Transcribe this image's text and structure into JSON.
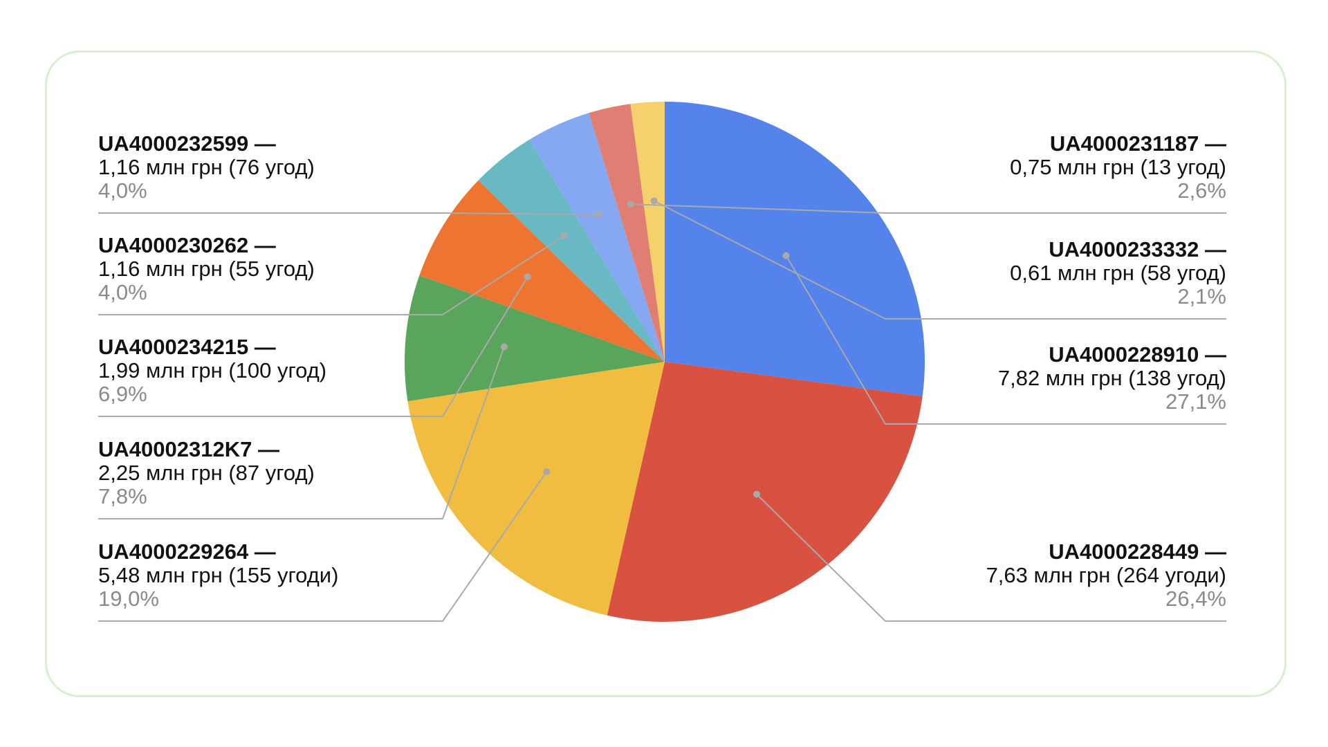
{
  "chart_data": {
    "type": "pie",
    "slices": [
      {
        "code": "UA4000228910 —",
        "value_text": "7,82 млн грн (138 угод)",
        "percent_text": "27,1%",
        "percent": 27.1,
        "color": "#5483eb"
      },
      {
        "code": "UA4000228449 —",
        "value_text": "7,63 млн грн (264 угоди)",
        "percent_text": "26,4%",
        "percent": 26.4,
        "color": "#d95241"
      },
      {
        "code": "UA4000229264 —",
        "value_text": "5,48 млн грн (155 угоди)",
        "percent_text": "19,0%",
        "percent": 19.0,
        "color": "#f0bd41"
      },
      {
        "code": "UA40002312K7 —",
        "value_text": "2,25 млн грн (87 угод)",
        "percent_text": "7,8%",
        "percent": 7.8,
        "color": "#5aa55c"
      },
      {
        "code": "UA4000234215 —",
        "value_text": "1,99 млн грн (100 угод)",
        "percent_text": "6,9%",
        "percent": 6.9,
        "color": "#ed7531"
      },
      {
        "code": "UA4000230262 —",
        "value_text": "1,16 млн грн (55 угод)",
        "percent_text": "4,0%",
        "percent": 4.0,
        "color": "#69b9c4"
      },
      {
        "code": "UA4000232599 —",
        "value_text": "1,16 млн грн (76 угод)",
        "percent_text": "4,0%",
        "percent": 4.0,
        "color": "#86a7f1"
      },
      {
        "code": "UA4000231187 —",
        "value_text": "0,75 млн грн (13 угод)",
        "percent_text": "2,6%",
        "percent": 2.6,
        "color": "#e17e73"
      },
      {
        "code": "UA4000233332 —",
        "value_text": "0,61 млн грн (58 угод)",
        "percent_text": "2,1%",
        "percent": 2.1,
        "color": "#f4d16a"
      }
    ]
  }
}
